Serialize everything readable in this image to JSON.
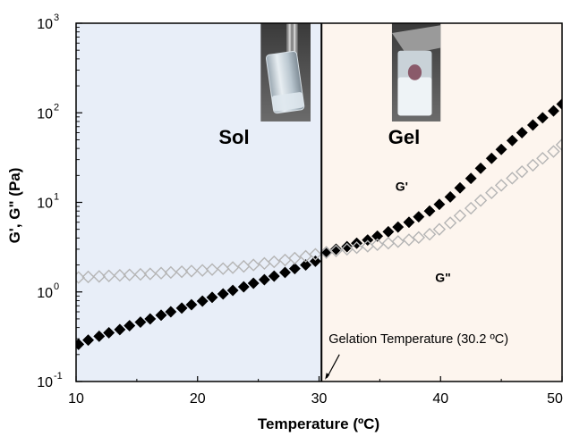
{
  "chart_data": {
    "type": "scatter",
    "xlabel": "Temperature (ºC)",
    "ylabel": "G', G\" (Pa)",
    "xlim": [
      10,
      50
    ],
    "ylim": [
      0.1,
      1000
    ],
    "yscale": "log",
    "x_ticks": [
      {
        "value": 10,
        "label": "10"
      },
      {
        "value": 20,
        "label": "20"
      },
      {
        "value": 30,
        "label": "30"
      },
      {
        "value": 40,
        "label": "40"
      },
      {
        "value": 50,
        "label": "50"
      }
    ],
    "y_ticks": [
      {
        "value": 0.1,
        "base": "10",
        "exp": "-1"
      },
      {
        "value": 1,
        "base": "10",
        "exp": "0"
      },
      {
        "value": 10,
        "base": "10",
        "exp": "1"
      },
      {
        "value": 100,
        "base": "10",
        "exp": "2"
      },
      {
        "value": 1000,
        "base": "10",
        "exp": "3"
      }
    ],
    "regions": [
      {
        "label": "Sol",
        "x_range": [
          10,
          30.2
        ],
        "color": "#e8eef8"
      },
      {
        "label": "Gel",
        "x_range": [
          30.2,
          50
        ],
        "color": "#fdf5ee"
      }
    ],
    "vline": {
      "x": 30.2,
      "label": "Gelation Temperature (30.2 ºC)"
    },
    "series": [
      {
        "name": "G'",
        "marker": "filled-diamond",
        "color": "#000000",
        "x": [
          10.2,
          11.0,
          11.9,
          12.7,
          13.6,
          14.4,
          15.3,
          16.1,
          17.0,
          17.8,
          18.7,
          19.5,
          20.4,
          21.2,
          22.1,
          22.9,
          23.8,
          24.6,
          25.5,
          26.3,
          27.2,
          28.0,
          28.9,
          29.7,
          30.6,
          31.4,
          32.3,
          33.1,
          34.0,
          34.8,
          35.7,
          36.5,
          37.4,
          38.2,
          39.1,
          39.9,
          40.8,
          41.6,
          42.5,
          43.3,
          44.2,
          45.0,
          45.9,
          46.7,
          47.6,
          48.4,
          49.3,
          50.0
        ],
        "y": [
          0.26,
          0.29,
          0.32,
          0.35,
          0.38,
          0.42,
          0.46,
          0.5,
          0.55,
          0.6,
          0.66,
          0.72,
          0.79,
          0.87,
          0.95,
          1.04,
          1.14,
          1.25,
          1.37,
          1.5,
          1.65,
          1.82,
          2.0,
          2.2,
          2.8,
          3.0,
          3.2,
          3.5,
          3.8,
          4.2,
          4.7,
          5.3,
          6.0,
          6.9,
          8.0,
          9.5,
          11.5,
          14.5,
          18.5,
          24.0,
          31.0,
          39.0,
          49.0,
          60.0,
          73.0,
          88.0,
          105.0,
          125.0
        ]
      },
      {
        "name": "G\"",
        "marker": "open-diamond",
        "color": "#b5b5b5",
        "x": [
          10.2,
          11.0,
          11.9,
          12.7,
          13.6,
          14.4,
          15.3,
          16.1,
          17.0,
          17.8,
          18.7,
          19.5,
          20.4,
          21.2,
          22.1,
          22.9,
          23.8,
          24.6,
          25.5,
          26.3,
          27.2,
          28.0,
          28.9,
          29.7,
          30.6,
          31.4,
          32.3,
          33.1,
          34.0,
          34.8,
          35.7,
          36.5,
          37.4,
          38.2,
          39.1,
          39.9,
          40.8,
          41.6,
          42.5,
          43.3,
          44.2,
          45.0,
          45.9,
          46.7,
          47.6,
          48.4,
          49.3,
          50.0
        ],
        "y": [
          1.45,
          1.47,
          1.49,
          1.51,
          1.53,
          1.55,
          1.57,
          1.59,
          1.62,
          1.65,
          1.68,
          1.71,
          1.74,
          1.78,
          1.82,
          1.87,
          1.93,
          2.0,
          2.08,
          2.17,
          2.27,
          2.38,
          2.5,
          2.63,
          2.75,
          2.87,
          3.0,
          3.12,
          3.24,
          3.37,
          3.5,
          3.65,
          3.82,
          4.05,
          4.4,
          5.0,
          5.9,
          7.1,
          8.6,
          10.5,
          12.8,
          15.5,
          18.6,
          22.0,
          26.0,
          31.0,
          37.0,
          44.0
        ]
      }
    ],
    "annotations": [
      {
        "text": "Sol",
        "x": 23.0,
        "y": 45.0
      },
      {
        "text": "Gel",
        "x": 37.0,
        "y": 45.0
      },
      {
        "text": "G'",
        "x": 36.8,
        "y": 13.5
      },
      {
        "text": "G\"",
        "x": 40.2,
        "y": 1.3
      }
    ],
    "photos": [
      {
        "name": "sol-vial-photo",
        "x_range": [
          25.2,
          29.3
        ],
        "y_range": [
          80,
          1000
        ],
        "state": "liquid"
      },
      {
        "name": "gel-vial-photo",
        "x_range": [
          36.0,
          40.0
        ],
        "y_range": [
          80,
          1000
        ],
        "state": "gel"
      }
    ],
    "grid": false
  }
}
